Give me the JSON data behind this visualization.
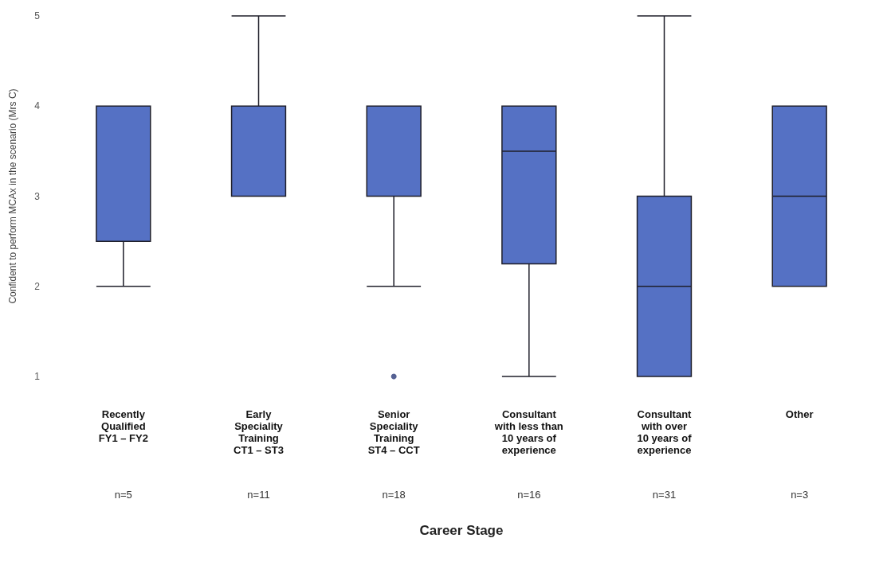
{
  "chart_data": {
    "type": "box",
    "xlabel": "Career Stage",
    "ylabel": "Confident to perform MCAx in the scenario (Mrs C)",
    "categories": [
      "Recently\nQualified\nFY1 – FY2",
      "Early\nSpeciality\nTraining\nCT1 – ST3",
      "Senior\nSpeciality\nTraining\nST4 – CCT",
      "Consultant\nwith less than\n10 years of\nexperience",
      "Consultant\nwith over\n10 years of\nexperience",
      "Other"
    ],
    "boxes": [
      {
        "low": 2,
        "q1": 2.5,
        "median": 4,
        "q3": 4,
        "high": 4
      },
      {
        "low": 3,
        "q1": 3,
        "median": 4,
        "q3": 4,
        "high": 5
      },
      {
        "low": 2,
        "q1": 3,
        "median": 4,
        "q3": 4,
        "high": 4,
        "outliers": [
          1
        ]
      },
      {
        "low": 1,
        "q1": 2.25,
        "median": 3.5,
        "q3": 4,
        "high": 4
      },
      {
        "low": 1,
        "q1": 1,
        "median": 2,
        "q3": 3,
        "high": 5
      },
      {
        "low": 2,
        "q1": 2,
        "median": 3,
        "q3": 4,
        "high": 4
      }
    ],
    "color": "#5571c4",
    "ylim": [
      1,
      5
    ],
    "yticks": [
      1,
      2,
      3,
      4,
      5
    ],
    "grid": false,
    "annotations": [
      "n=5",
      "n=11",
      "n=18",
      "n=16",
      "n=31",
      "n=3"
    ]
  }
}
